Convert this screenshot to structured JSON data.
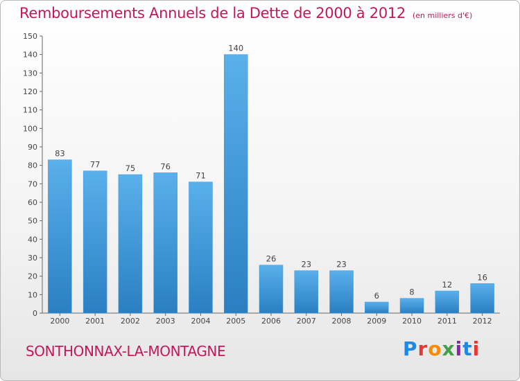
{
  "title": "Remboursements Annuels de la Dette de 2000 à 2012",
  "unit": "(en milliers d'€)",
  "commune": "SONTHONNAX-LA-MONTAGNE",
  "logo": {
    "letters": [
      "P",
      "r",
      "o",
      "x",
      "i",
      "t",
      "i"
    ],
    "colors": [
      "#1e88e5",
      "#e53935",
      "#fb8c00",
      "#43a047",
      "#8e24aa",
      "#1e88e5",
      "#e53935"
    ]
  },
  "colors": {
    "bar": "#3d9be0",
    "bar_top": "#5ab0ea",
    "bar_bottom": "#2a7fc2",
    "axis": "#666666",
    "text": "#444444",
    "accent": "#c2185b"
  },
  "chart_data": {
    "type": "bar",
    "categories": [
      "2000",
      "2001",
      "2002",
      "2003",
      "2004",
      "2005",
      "2006",
      "2007",
      "2008",
      "2009",
      "2010",
      "2011",
      "2012"
    ],
    "values": [
      83,
      77,
      75,
      76,
      71,
      140,
      26,
      23,
      23,
      6,
      8,
      12,
      16
    ],
    "ylim": [
      0,
      150
    ],
    "yticks": [
      0,
      10,
      20,
      30,
      40,
      50,
      60,
      70,
      80,
      90,
      100,
      110,
      120,
      130,
      140,
      150
    ],
    "grid": false,
    "data_labels": true
  }
}
